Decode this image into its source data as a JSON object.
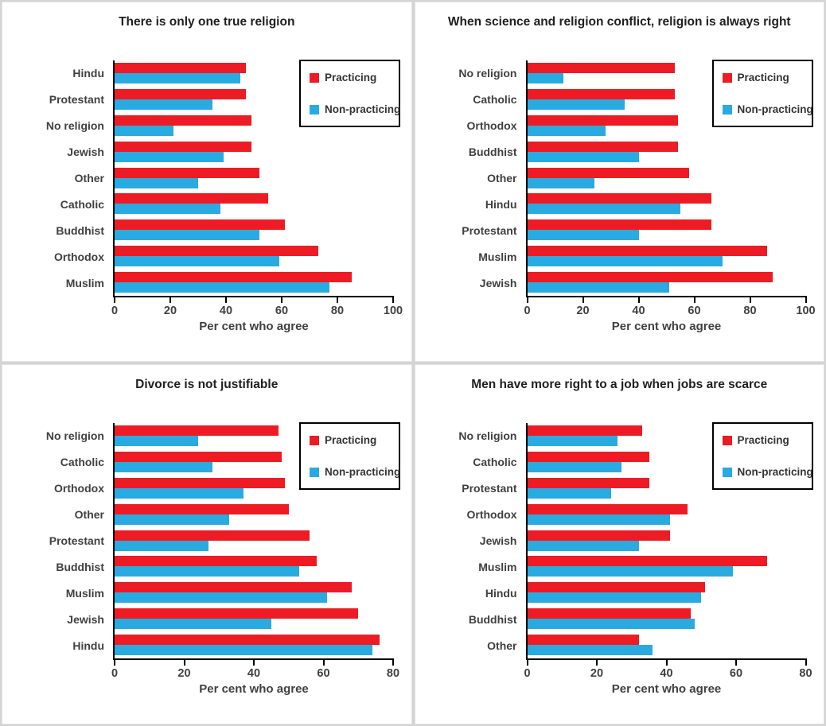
{
  "chart_data": [
    {
      "type": "bar",
      "orientation": "horizontal",
      "title": "There is only one true religion",
      "xlabel": "Per cent who agree",
      "xlim": [
        0,
        100
      ],
      "xticks": [
        0,
        20,
        40,
        60,
        80,
        100
      ],
      "grid": false,
      "legend_position": "top-right",
      "categories": [
        "Hindu",
        "Protestant",
        "No religion",
        "Jewish",
        "Other",
        "Catholic",
        "Buddhist",
        "Orthodox",
        "Muslim"
      ],
      "series": [
        {
          "name": "Practicing",
          "color": "#ED1C24",
          "values": [
            47,
            47,
            49,
            49,
            52,
            55,
            61,
            73,
            85
          ]
        },
        {
          "name": "Non-practicing",
          "color": "#29ABE2",
          "values": [
            45,
            35,
            21,
            39,
            30,
            38,
            52,
            59,
            77
          ]
        }
      ]
    },
    {
      "type": "bar",
      "orientation": "horizontal",
      "title": "When science and religion conflict, religion is always right",
      "xlabel": "Per cent who agree",
      "xlim": [
        0,
        100
      ],
      "xticks": [
        0,
        20,
        40,
        60,
        80,
        100
      ],
      "grid": false,
      "legend_position": "top-right",
      "categories": [
        "No religion",
        "Catholic",
        "Orthodox",
        "Buddhist",
        "Other",
        "Hindu",
        "Protestant",
        "Muslim",
        "Jewish"
      ],
      "series": [
        {
          "name": "Practicing",
          "color": "#ED1C24",
          "values": [
            53,
            53,
            54,
            54,
            58,
            66,
            66,
            86,
            88
          ]
        },
        {
          "name": "Non-practicing",
          "color": "#29ABE2",
          "values": [
            13,
            35,
            28,
            40,
            24,
            55,
            40,
            70,
            51
          ]
        }
      ]
    },
    {
      "type": "bar",
      "orientation": "horizontal",
      "title": "Divorce is not justifiable",
      "xlabel": "Per cent who agree",
      "xlim": [
        0,
        80
      ],
      "xticks": [
        0,
        20,
        40,
        60,
        80
      ],
      "grid": false,
      "legend_position": "top-right",
      "categories": [
        "No religion",
        "Catholic",
        "Orthodox",
        "Other",
        "Protestant",
        "Buddhist",
        "Muslim",
        "Jewish",
        "Hindu"
      ],
      "series": [
        {
          "name": "Practicing",
          "color": "#ED1C24",
          "values": [
            47,
            48,
            49,
            50,
            56,
            58,
            68,
            70,
            76
          ]
        },
        {
          "name": "Non-practicing",
          "color": "#29ABE2",
          "values": [
            24,
            28,
            37,
            33,
            27,
            53,
            61,
            45,
            74
          ]
        }
      ]
    },
    {
      "type": "bar",
      "orientation": "horizontal",
      "title": "Men have more right to a job when jobs are scarce",
      "xlabel": "Per cent who agree",
      "xlim": [
        0,
        80
      ],
      "xticks": [
        0,
        20,
        40,
        60,
        80
      ],
      "grid": false,
      "legend_position": "top-right",
      "categories": [
        "No religion",
        "Catholic",
        "Protestant",
        "Orthodox",
        "Jewish",
        "Muslim",
        "Hindu",
        "Buddhist",
        "Other"
      ],
      "series": [
        {
          "name": "Practicing",
          "color": "#ED1C24",
          "values": [
            33,
            35,
            35,
            46,
            41,
            69,
            51,
            47,
            32
          ]
        },
        {
          "name": "Non-practicing",
          "color": "#29ABE2",
          "values": [
            26,
            27,
            24,
            41,
            32,
            59,
            50,
            48,
            36
          ]
        }
      ]
    }
  ],
  "style": {
    "practicing_color": "#ED1C24",
    "non_practicing_color": "#29ABE2",
    "axis_color": "#000000",
    "label_color": "#404040",
    "panel_divider_color": "#d4d4d4"
  }
}
